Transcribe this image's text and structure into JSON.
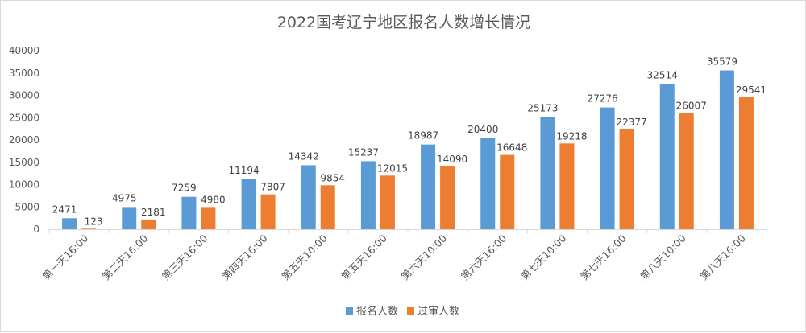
{
  "chart_data": {
    "type": "bar",
    "title": "2022国考辽宁地区报名人数增长情况",
    "categories": [
      "第一天16:00",
      "第二天16:00",
      "第三天16:00",
      "第四天16:00",
      "第五天10:00",
      "第五天16:00",
      "第六天10:00",
      "第六天16:00",
      "第七天10:00",
      "第七天16:00",
      "第八天10:00",
      "第八天16:00"
    ],
    "series": [
      {
        "name": "报名人数",
        "color": "#5b9bd5",
        "values": [
          2471,
          4975,
          7259,
          11194,
          14342,
          15237,
          18987,
          20400,
          25173,
          27276,
          32514,
          35579
        ]
      },
      {
        "name": "过审人数",
        "color": "#ed7d31",
        "values": [
          123,
          2181,
          4980,
          7807,
          9854,
          12015,
          14090,
          16648,
          19218,
          22377,
          26007,
          29541
        ]
      }
    ],
    "ylim": [
      0,
      40000
    ],
    "yticks": [
      0,
      5000,
      10000,
      15000,
      20000,
      25000,
      30000,
      35000,
      40000
    ],
    "grid": false,
    "legend_position": "bottom",
    "data_labels": true
  }
}
